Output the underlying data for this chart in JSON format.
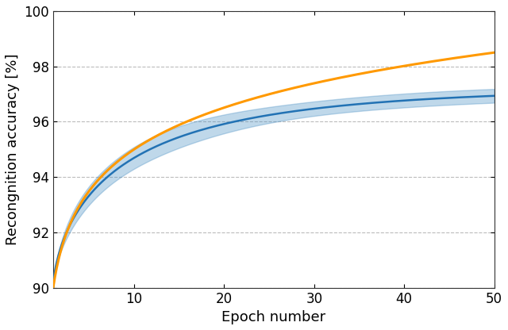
{
  "title": "",
  "xlabel": "Epoch number",
  "ylabel": "Recongnition accuracy [%]",
  "xlim": [
    1,
    50
  ],
  "ylim": [
    90,
    100
  ],
  "xticks": [
    10,
    20,
    30,
    40,
    50
  ],
  "yticks": [
    90,
    92,
    94,
    96,
    98,
    100
  ],
  "orange_color": "#ff9900",
  "blue_color": "#2272b4",
  "blue_fill_color": "#4a90c4",
  "background_color": "#ffffff",
  "grid_color": "#bbbbbb",
  "figsize": [
    6.4,
    4.16
  ],
  "dpi": 100
}
